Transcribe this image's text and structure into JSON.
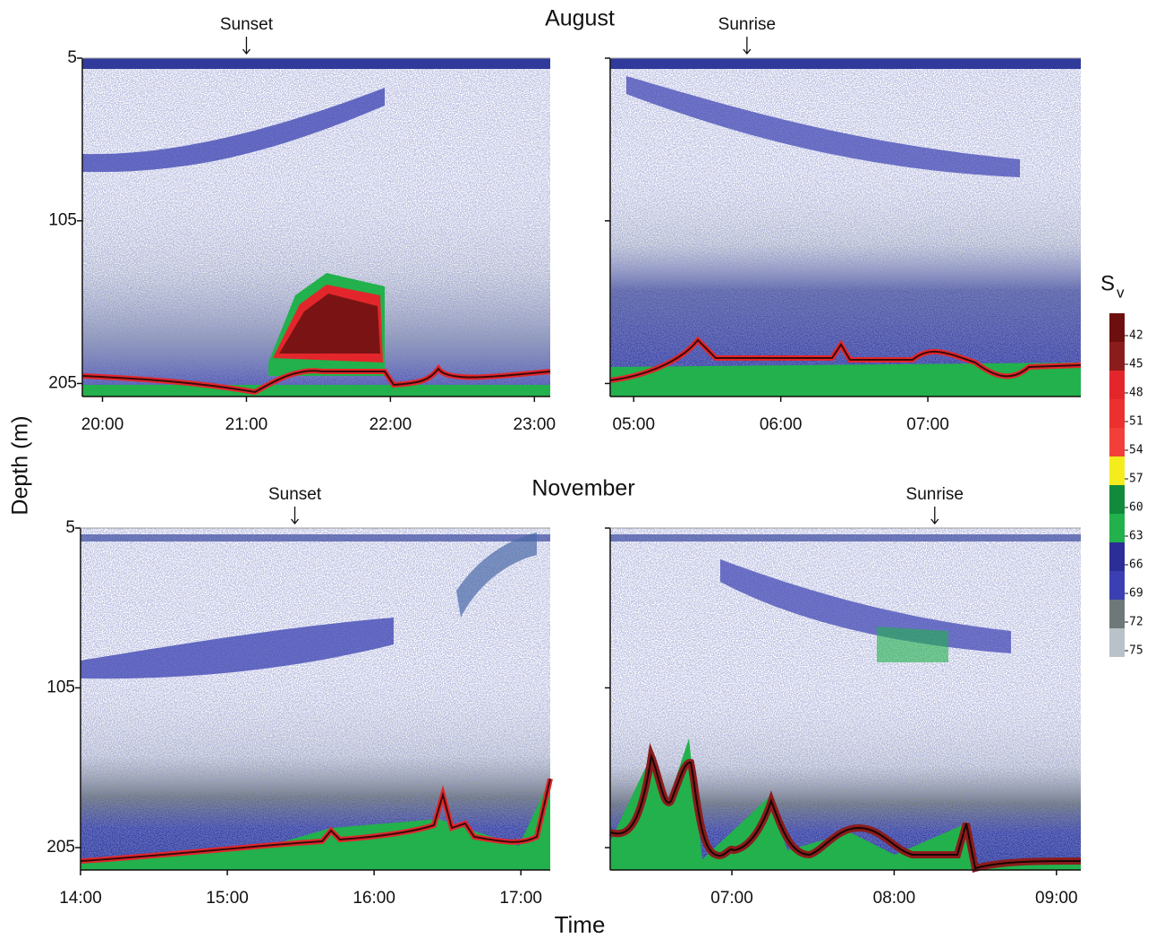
{
  "row_titles": [
    "August",
    "November"
  ],
  "x_label": "Time",
  "y_label": "Depth (m)",
  "colorbar": {
    "title": "S",
    "subscript": "v",
    "levels": [
      42,
      45,
      48,
      51,
      54,
      57,
      60,
      63,
      66,
      69,
      72,
      75
    ],
    "colors": [
      "#6e0f0f",
      "#8b1c1c",
      "#e3262b",
      "#ec2f2f",
      "#f23f3a",
      "#f4ec1c",
      "#118a3b",
      "#22b14c",
      "#2a2e96",
      "#3a40b2",
      "#6f7878",
      "#b9c1c9"
    ]
  },
  "chart_data": [
    {
      "type": "echogram",
      "xlim": [
        19.86,
        23.11
      ],
      "ylim": [
        5,
        213
      ],
      "invert_y": true,
      "xticks": [
        {
          "value": 20,
          "label": "20:00"
        },
        {
          "value": 21,
          "label": "21:00"
        },
        {
          "value": 22,
          "label": "22:00"
        },
        {
          "value": 23,
          "label": "23:00"
        }
      ],
      "yticks": [
        5,
        105,
        205
      ],
      "show_ytick_labels": true,
      "annotations": [
        {
          "text": "Sunset",
          "x": 21
        }
      ]
    },
    {
      "type": "echogram",
      "xlim": [
        4.84,
        8.04
      ],
      "ylim": [
        5,
        213
      ],
      "invert_y": true,
      "xticks": [
        {
          "value": 5,
          "label": "05:00"
        },
        {
          "value": 6,
          "label": "06:00"
        },
        {
          "value": 7,
          "label": "07:00"
        }
      ],
      "yticks": [
        5,
        105,
        205
      ],
      "show_ytick_labels": false,
      "annotations": [
        {
          "text": "Sunrise",
          "x": 5.77
        }
      ]
    },
    {
      "type": "echogram",
      "xlim": [
        14,
        17.2
      ],
      "ylim": [
        5,
        219
      ],
      "invert_y": true,
      "xticks": [
        {
          "value": 14,
          "label": "14:00"
        },
        {
          "value": 15,
          "label": "15:00"
        },
        {
          "value": 16,
          "label": "16:00"
        },
        {
          "value": 17,
          "label": "17:00"
        }
      ],
      "yticks": [
        5,
        105,
        205
      ],
      "show_ytick_labels": true,
      "annotations": [
        {
          "text": "Sunset",
          "x": 15.46
        }
      ]
    },
    {
      "type": "echogram",
      "xlim": [
        6.25,
        9.15
      ],
      "ylim": [
        5,
        219
      ],
      "invert_y": true,
      "xticks": [
        {
          "value": 7,
          "label": "07:00"
        },
        {
          "value": 8,
          "label": "08:00"
        },
        {
          "value": 9,
          "label": "09:00"
        }
      ],
      "yticks": [
        5,
        105,
        205
      ],
      "show_ytick_labels": false,
      "annotations": [
        {
          "text": "Sunrise",
          "x": 8.25
        }
      ]
    }
  ]
}
